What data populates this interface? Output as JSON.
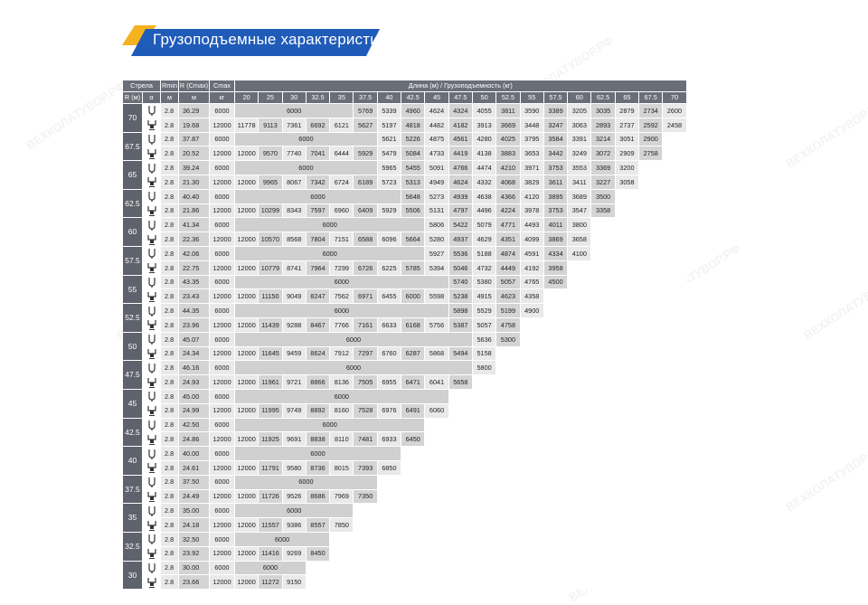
{
  "title": "Грузоподъемные характеристики",
  "colors": {
    "header": "#6a6e78",
    "row_header": "#5e626c",
    "accent_blue": "#1f5bb8",
    "accent_yellow": "#f4b21e",
    "cell_light": "#e9e9e9",
    "cell_dark": "#d4d4d4"
  },
  "watermark": "ВЕХКОЛАТУВОР.РФ",
  "table": {
    "header_strela": "Стрела",
    "header_r": "R (м)",
    "header_a": "α",
    "header_rmin": "Rmin",
    "header_rmin_unit": "м",
    "header_rcmax": "R (Cmax)",
    "header_rcmax_unit": "м",
    "header_cmax": "Cmax",
    "header_cmax_unit": "кг",
    "header_length": "Длина (м) / Грузоподъемность (кг)",
    "lengths": [
      "20",
      "25",
      "30",
      "32.5",
      "35",
      "37.5",
      "40",
      "42.5",
      "45",
      "47.5",
      "50",
      "52.5",
      "55",
      "57.5",
      "60",
      "62.5",
      "65",
      "67.5",
      "70"
    ],
    "icon_top": "hook-icon",
    "icon_bottom": "outrigger-hook-icon",
    "groups": [
      {
        "r": "70",
        "rows": [
          {
            "rmin": "2.8",
            "rc": "36.29",
            "cmax": "6000",
            "merged": "6000",
            "mspan": 5,
            "vals": [
              "5769",
              "5339",
              "4960",
              "4624",
              "4324",
              "4055",
              "3811",
              "3590",
              "3389",
              "3205",
              "3035",
              "2879",
              "2734",
              "2600"
            ]
          },
          {
            "rmin": "2.8",
            "rc": "19.68",
            "cmax": "12000",
            "vals": [
              "11778",
              "9113",
              "7361",
              "6692",
              "6121",
              "5627",
              "5197",
              "4818",
              "4482",
              "4182",
              "3913",
              "3669",
              "3448",
              "3247",
              "3063",
              "2893",
              "2737",
              "2592",
              "2458"
            ]
          }
        ]
      },
      {
        "r": "67.5",
        "rows": [
          {
            "rmin": "2.8",
            "rc": "37.87",
            "cmax": "6000",
            "merged": "6000",
            "mspan": 6,
            "vals": [
              "5621",
              "5226",
              "4875",
              "4561",
              "4280",
              "4025",
              "3795",
              "3584",
              "3391",
              "3214",
              "3051",
              "2900"
            ]
          },
          {
            "rmin": "2.8",
            "rc": "20.52",
            "cmax": "12000",
            "vals": [
              "12000",
              "9570",
              "7740",
              "7041",
              "6444",
              "5929",
              "5479",
              "5084",
              "4733",
              "4419",
              "4138",
              "3883",
              "3653",
              "3442",
              "3249",
              "3072",
              "2909",
              "2758"
            ]
          }
        ]
      },
      {
        "r": "65",
        "rows": [
          {
            "rmin": "2.8",
            "rc": "39.24",
            "cmax": "6000",
            "merged": "6000",
            "mspan": 6,
            "vals": [
              "5965",
              "5455",
              "5091",
              "4766",
              "4474",
              "4210",
              "3971",
              "3753",
              "3553",
              "3369",
              "3200"
            ]
          },
          {
            "rmin": "2.8",
            "rc": "21.30",
            "cmax": "12000",
            "vals": [
              "12000",
              "9965",
              "8067",
              "7342",
              "6724",
              "6189",
              "5723",
              "5313",
              "4949",
              "4624",
              "4332",
              "4068",
              "3829",
              "3611",
              "3411",
              "3227",
              "3058"
            ]
          }
        ]
      },
      {
        "r": "62.5",
        "rows": [
          {
            "rmin": "2.8",
            "rc": "40.40",
            "cmax": "6000",
            "merged": "6000",
            "mspan": 7,
            "vals": [
              "5648",
              "5273",
              "4939",
              "4638",
              "4366",
              "4120",
              "3895",
              "3689",
              "3500"
            ]
          },
          {
            "rmin": "2.8",
            "rc": "21.86",
            "cmax": "12000",
            "vals": [
              "12000",
              "10299",
              "8343",
              "7597",
              "6960",
              "6409",
              "5929",
              "5506",
              "5131",
              "4797",
              "4496",
              "4224",
              "3978",
              "3753",
              "3547",
              "3358"
            ]
          }
        ]
      },
      {
        "r": "60",
        "rows": [
          {
            "rmin": "2.8",
            "rc": "41.34",
            "cmax": "6000",
            "merged": "6000",
            "mspan": 8,
            "vals": [
              "5806",
              "5422",
              "5079",
              "4771",
              "4493",
              "4011",
              "3800"
            ]
          },
          {
            "rmin": "2.8",
            "rc": "22.36",
            "cmax": "12000",
            "vals": [
              "12000",
              "10570",
              "8568",
              "7804",
              "7151",
              "6588",
              "6096",
              "5664",
              "5280",
              "4937",
              "4629",
              "4351",
              "4099",
              "3869",
              "3658"
            ]
          }
        ]
      },
      {
        "r": "57.5",
        "rows": [
          {
            "rmin": "2.8",
            "rc": "42.06",
            "cmax": "6000",
            "merged": "6000",
            "mspan": 8,
            "vals": [
              "5927",
              "5536",
              "5188",
              "4874",
              "4591",
              "4334",
              "4100"
            ]
          },
          {
            "rmin": "2.8",
            "rc": "22.75",
            "cmax": "12000",
            "vals": [
              "12000",
              "10779",
              "8741",
              "7964",
              "7299",
              "6726",
              "6225",
              "5785",
              "5394",
              "5046",
              "4732",
              "4449",
              "4192",
              "3958"
            ]
          }
        ]
      },
      {
        "r": "55",
        "rows": [
          {
            "rmin": "2.8",
            "rc": "43.35",
            "cmax": "6000",
            "merged": "6000",
            "mspan": 9,
            "vals": [
              "5740",
              "5380",
              "5057",
              "4765",
              "4500"
            ]
          },
          {
            "rmin": "2.8",
            "rc": "23.43",
            "cmax": "12000",
            "vals": [
              "12000",
              "11150",
              "9049",
              "8247",
              "7562",
              "6971",
              "6455",
              "6000",
              "5598",
              "5238",
              "4915",
              "4623",
              "4358"
            ]
          }
        ]
      },
      {
        "r": "52.5",
        "rows": [
          {
            "rmin": "2.8",
            "rc": "44.35",
            "cmax": "6000",
            "merged": "6000",
            "mspan": 9,
            "vals": [
              "5898",
              "5529",
              "5199",
              "4900"
            ]
          },
          {
            "rmin": "2.8",
            "rc": "23.96",
            "cmax": "12000",
            "vals": [
              "12000",
              "11439",
              "9288",
              "8467",
              "7766",
              "7161",
              "6633",
              "6168",
              "5756",
              "5387",
              "5057",
              "4758"
            ]
          }
        ]
      },
      {
        "r": "50",
        "rows": [
          {
            "rmin": "2.8",
            "rc": "45.07",
            "cmax": "6000",
            "merged": "6000",
            "mspan": 10,
            "vals": [
              "5636",
              "5300"
            ]
          },
          {
            "rmin": "2.8",
            "rc": "24.34",
            "cmax": "12000",
            "vals": [
              "12000",
              "11645",
              "9459",
              "8624",
              "7912",
              "7297",
              "6760",
              "6287",
              "5868",
              "5494",
              "5158"
            ]
          }
        ]
      },
      {
        "r": "47.5",
        "rows": [
          {
            "rmin": "2.8",
            "rc": "46.16",
            "cmax": "6000",
            "merged": "6000",
            "mspan": 10,
            "vals": [
              "5800"
            ]
          },
          {
            "rmin": "2.8",
            "rc": "24.93",
            "cmax": "12000",
            "vals": [
              "12000",
              "11961",
              "9721",
              "8866",
              "8136",
              "7505",
              "6955",
              "6471",
              "6041",
              "5658"
            ]
          }
        ]
      },
      {
        "r": "45",
        "rows": [
          {
            "rmin": "2.8",
            "rc": "45.00",
            "cmax": "6000",
            "merged": "6000",
            "mspan": 9,
            "vals": []
          },
          {
            "rmin": "2.8",
            "rc": "24.99",
            "cmax": "12000",
            "vals": [
              "12000",
              "11995",
              "9749",
              "8892",
              "8160",
              "7528",
              "6976",
              "6491",
              "6060"
            ]
          }
        ]
      },
      {
        "r": "42.5",
        "rows": [
          {
            "rmin": "2.8",
            "rc": "42.50",
            "cmax": "6000",
            "merged": "6000",
            "mspan": 8,
            "vals": []
          },
          {
            "rmin": "2.8",
            "rc": "24.86",
            "cmax": "12000",
            "vals": [
              "12000",
              "11925",
              "9691",
              "8838",
              "8110",
              "7481",
              "6933",
              "6450"
            ]
          }
        ]
      },
      {
        "r": "40",
        "rows": [
          {
            "rmin": "2.8",
            "rc": "40.00",
            "cmax": "6000",
            "merged": "6000",
            "mspan": 7,
            "vals": []
          },
          {
            "rmin": "2.8",
            "rc": "24.61",
            "cmax": "12000",
            "vals": [
              "12000",
              "11791",
              "9580",
              "8736",
              "8015",
              "7393",
              "6850"
            ]
          }
        ]
      },
      {
        "r": "37.5",
        "rows": [
          {
            "rmin": "2.8",
            "rc": "37.50",
            "cmax": "6000",
            "merged": "6000",
            "mspan": 6,
            "vals": []
          },
          {
            "rmin": "2.8",
            "rc": "24.49",
            "cmax": "12000",
            "vals": [
              "12000",
              "11726",
              "9526",
              "8686",
              "7969",
              "7350"
            ]
          }
        ]
      },
      {
        "r": "35",
        "rows": [
          {
            "rmin": "2.8",
            "rc": "35.00",
            "cmax": "6000",
            "merged": "6000",
            "mspan": 5,
            "vals": []
          },
          {
            "rmin": "2.8",
            "rc": "24.18",
            "cmax": "12000",
            "vals": [
              "12000",
              "11557",
              "9386",
              "8557",
              "7850"
            ]
          }
        ]
      },
      {
        "r": "32.5",
        "rows": [
          {
            "rmin": "2.8",
            "rc": "32.50",
            "cmax": "6000",
            "merged": "6000",
            "mspan": 4,
            "vals": []
          },
          {
            "rmin": "2.8",
            "rc": "23.92",
            "cmax": "12000",
            "vals": [
              "12000",
              "11416",
              "9269",
              "8450"
            ]
          }
        ]
      },
      {
        "r": "30",
        "rows": [
          {
            "rmin": "2.8",
            "rc": "30.00",
            "cmax": "6000",
            "merged": "6000",
            "mspan": 3,
            "vals": []
          },
          {
            "rmin": "2.8",
            "rc": "23.66",
            "cmax": "12000",
            "vals": [
              "12000",
              "11272",
              "9150"
            ]
          }
        ]
      }
    ]
  }
}
